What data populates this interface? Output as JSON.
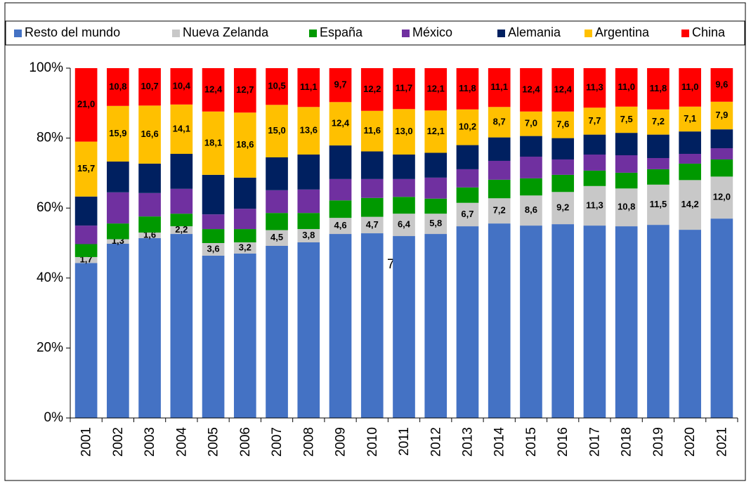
{
  "chart_data": {
    "type": "stacked-bar",
    "categories": [
      "2001",
      "2002",
      "2003",
      "2004",
      "2005",
      "2006",
      "2007",
      "2008",
      "2009",
      "2010",
      "2011",
      "2012",
      "2013",
      "2014",
      "2015",
      "2016",
      "2017",
      "2018",
      "2019",
      "2020",
      "2021"
    ],
    "series": [
      {
        "name": "Resto del mundo",
        "color": "#4472C4",
        "values": [
          44.3,
          49.8,
          51.4,
          52.6,
          46.4,
          47.0,
          49.2,
          50.2,
          52.6,
          52.8,
          52.0,
          52.6,
          54.8,
          55.6,
          55.0,
          55.4,
          55.0,
          54.8,
          55.2,
          53.8,
          57.0
        ]
      },
      {
        "name": "Nueva Zelanda",
        "color": "#C8C8C8",
        "values": [
          1.7,
          1.3,
          1.6,
          2.2,
          3.6,
          3.2,
          4.5,
          3.8,
          4.6,
          4.7,
          6.4,
          5.8,
          6.7,
          7.2,
          8.6,
          9.2,
          11.3,
          10.8,
          11.5,
          14.2,
          12.0
        ],
        "value_labels": [
          "1,7",
          "1,3",
          "1,6",
          "2,2",
          "3,6",
          "3,2",
          "4,5",
          "3,8",
          "4,6",
          "4,7",
          "6,4",
          "5,8",
          "6,7",
          "7,2",
          "8,6",
          "9,2",
          "11,3",
          "10,8",
          "11,5",
          "14,2",
          "12,0"
        ]
      },
      {
        "name": "España",
        "color": "#009900",
        "values": [
          3.7,
          4.5,
          4.6,
          3.6,
          4.0,
          3.8,
          4.9,
          4.6,
          5.0,
          5.4,
          4.8,
          4.3,
          4.4,
          5.3,
          4.9,
          4.9,
          4.4,
          4.5,
          4.4,
          4.7,
          4.9
        ]
      },
      {
        "name": "México",
        "color": "#7030A0",
        "values": [
          5.3,
          8.9,
          6.7,
          7.1,
          4.2,
          5.8,
          6.5,
          6.7,
          6.1,
          5.4,
          5.1,
          6.0,
          5.2,
          5.4,
          6.2,
          4.4,
          4.6,
          5.0,
          3.2,
          2.8,
          3.2
        ]
      },
      {
        "name": "Alemania",
        "color": "#002060",
        "values": [
          8.3,
          8.8,
          8.4,
          10.0,
          11.3,
          8.9,
          9.4,
          10.0,
          9.6,
          7.9,
          7.0,
          7.1,
          6.9,
          6.7,
          5.9,
          6.1,
          5.7,
          6.4,
          6.7,
          6.4,
          5.4
        ]
      },
      {
        "name": "Argentina",
        "color": "#FFC000",
        "values": [
          15.7,
          15.9,
          16.6,
          14.1,
          18.1,
          18.6,
          15.0,
          13.6,
          12.4,
          11.6,
          13.0,
          12.1,
          10.2,
          8.7,
          7.0,
          7.6,
          7.7,
          7.5,
          7.2,
          7.1,
          7.9
        ],
        "value_labels": [
          "15,7",
          "15,9",
          "16,6",
          "14,1",
          "18,1",
          "18,6",
          "15,0",
          "13,6",
          "12,4",
          "11,6",
          "13,0",
          "12,1",
          "10,2",
          "8,7",
          "7,0",
          "7,6",
          "7,7",
          "7,5",
          "7,2",
          "7,1",
          "7,9"
        ]
      },
      {
        "name": "China",
        "color": "#FF0000",
        "values": [
          21.0,
          10.8,
          10.7,
          10.4,
          12.4,
          12.7,
          10.5,
          11.1,
          9.7,
          12.2,
          11.7,
          12.1,
          11.8,
          11.1,
          12.4,
          12.4,
          11.3,
          11.0,
          11.8,
          11.0,
          9.6
        ],
        "value_labels": [
          "21,0",
          "10,8",
          "10,7",
          "10,4",
          "12,4",
          "12,7",
          "10,5",
          "11,1",
          "9,7",
          "12,2",
          "11,7",
          "12,1",
          "11,8",
          "11,1",
          "12,4",
          "12,4",
          "11,3",
          "11,0",
          "11,8",
          "11,0",
          "9,6"
        ]
      }
    ],
    "ylim": [
      0,
      100
    ],
    "yticks": [
      {
        "value": 0,
        "label": "0%"
      },
      {
        "value": 20,
        "label": "20%"
      },
      {
        "value": 40,
        "label": "40%"
      },
      {
        "value": 60,
        "label": "60%"
      },
      {
        "value": 80,
        "label": "80%"
      },
      {
        "value": 100,
        "label": "100%"
      }
    ],
    "grid": false,
    "annotation": "7"
  }
}
